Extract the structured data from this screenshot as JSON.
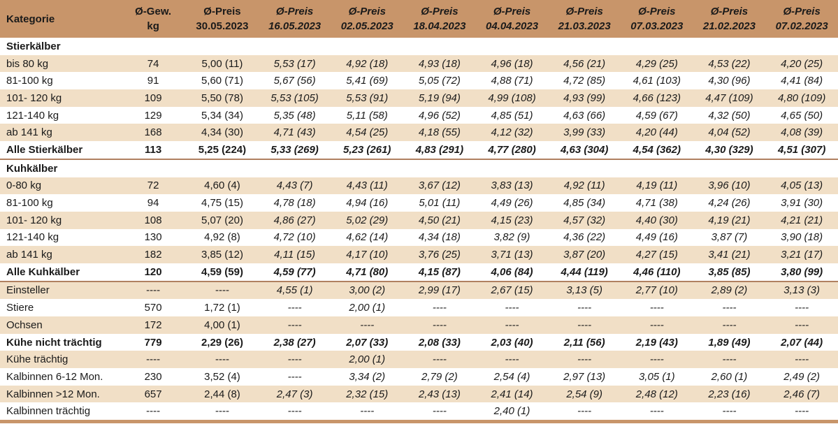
{
  "header": {
    "category": "Kategorie",
    "weight_line1": "Ø-Gew.",
    "weight_line2": "kg",
    "price_label": "Ø-Preis",
    "dates": [
      "30.05.2023",
      "16.05.2023",
      "02.05.2023",
      "18.04.2023",
      "04.04.2023",
      "21.03.2023",
      "07.03.2023",
      "21.02.2023",
      "07.02.2023"
    ]
  },
  "sections": {
    "stierkaelber": "Stierkälber",
    "kuhkaelber": "Kuhkälber"
  },
  "rows": [
    {
      "label": "bis 80 kg",
      "w": "74",
      "p": [
        "5,00 (11)",
        "5,53 (17)",
        "4,92 (18)",
        "4,93 (18)",
        "4,96 (18)",
        "4,56 (21)",
        "4,29 (25)",
        "4,53 (22)",
        "4,20 (25)"
      ]
    },
    {
      "label": "81-100 kg",
      "w": "91",
      "p": [
        "5,60 (71)",
        "5,67 (56)",
        "5,41 (69)",
        "5,05 (72)",
        "4,88 (71)",
        "4,72 (85)",
        "4,61 (103)",
        "4,30 (96)",
        "4,41 (84)"
      ]
    },
    {
      "label": "101- 120 kg",
      "w": "109",
      "p": [
        "5,50 (78)",
        "5,53 (105)",
        "5,53 (91)",
        "5,19 (94)",
        "4,99 (108)",
        "4,93 (99)",
        "4,66 (123)",
        "4,47 (109)",
        "4,80 (109)"
      ]
    },
    {
      "label": "121-140 kg",
      "w": "129",
      "p": [
        "5,34 (34)",
        "5,35 (48)",
        "5,11 (58)",
        "4,96 (52)",
        "4,85 (51)",
        "4,63 (66)",
        "4,59 (67)",
        "4,32 (50)",
        "4,65 (50)"
      ]
    },
    {
      "label": "ab 141 kg",
      "w": "168",
      "p": [
        "4,34 (30)",
        "4,71 (43)",
        "4,54 (25)",
        "4,18 (55)",
        "4,12 (32)",
        "3,99 (33)",
        "4,20 (44)",
        "4,04 (52)",
        "4,08 (39)"
      ]
    },
    {
      "label": "Alle Stierkälber",
      "w": "113",
      "p": [
        "5,25 (224)",
        "5,33 (269)",
        "5,23 (261)",
        "4,83 (291)",
        "4,77 (280)",
        "4,63 (304)",
        "4,54 (362)",
        "4,30 (329)",
        "4,51 (307)"
      ]
    },
    {
      "label": "0-80 kg",
      "w": "72",
      "p": [
        "4,60 (4)",
        "4,43 (7)",
        "4,43 (11)",
        "3,67 (12)",
        "3,83 (13)",
        "4,92 (11)",
        "4,19 (11)",
        "3,96 (10)",
        "4,05 (13)"
      ]
    },
    {
      "label": "81-100 kg",
      "w": "94",
      "p": [
        "4,75 (15)",
        "4,78 (18)",
        "4,94 (16)",
        "5,01 (11)",
        "4,49 (26)",
        "4,85 (34)",
        "4,71 (38)",
        "4,24 (26)",
        "3,91 (30)"
      ]
    },
    {
      "label": "101- 120 kg",
      "w": "108",
      "p": [
        "5,07 (20)",
        "4,86 (27)",
        "5,02 (29)",
        "4,50 (21)",
        "4,15 (23)",
        "4,57 (32)",
        "4,40 (30)",
        "4,19 (21)",
        "4,21 (21)"
      ]
    },
    {
      "label": "121-140 kg",
      "w": "130",
      "p": [
        "4,92 (8)",
        "4,72 (10)",
        "4,62 (14)",
        "4,34 (18)",
        "3,82 (9)",
        "4,36 (22)",
        "4,49 (16)",
        "3,87 (7)",
        "3,90 (18)"
      ]
    },
    {
      "label": "ab 141 kg",
      "w": "182",
      "p": [
        "3,85 (12)",
        "4,11 (15)",
        "4,17 (10)",
        "3,76 (25)",
        "3,71 (13)",
        "3,87 (20)",
        "4,27 (15)",
        "3,41 (21)",
        "3,21 (17)"
      ]
    },
    {
      "label": "Alle Kuhkälber",
      "w": "120",
      "p": [
        "4,59 (59)",
        "4,59 (77)",
        "4,71 (80)",
        "4,15 (87)",
        "4,06 (84)",
        "4,44 (119)",
        "4,46 (110)",
        "3,85 (85)",
        "3,80 (99)"
      ]
    },
    {
      "label": "Einsteller",
      "w": "----",
      "p": [
        "----",
        "4,55 (1)",
        "3,00 (2)",
        "2,99 (17)",
        "2,67 (15)",
        "3,13 (5)",
        "2,77 (10)",
        "2,89 (2)",
        "3,13 (3)"
      ]
    },
    {
      "label": "Stiere",
      "w": "570",
      "p": [
        "1,72 (1)",
        "----",
        "2,00 (1)",
        "----",
        "----",
        "----",
        "----",
        "----",
        "----"
      ]
    },
    {
      "label": "Ochsen",
      "w": "172",
      "p": [
        "4,00 (1)",
        "----",
        "----",
        "----",
        "----",
        "----",
        "----",
        "----",
        "----"
      ]
    },
    {
      "label": "Kühe nicht trächtig",
      "w": "779",
      "p": [
        "2,29 (26)",
        "2,38 (27)",
        "2,07 (33)",
        "2,08 (33)",
        "2,03 (40)",
        "2,11 (56)",
        "2,19 (43)",
        "1,89 (49)",
        "2,07 (44)"
      ]
    },
    {
      "label": "Kühe trächtig",
      "w": "----",
      "p": [
        "----",
        "----",
        "2,00 (1)",
        "----",
        "----",
        "----",
        "----",
        "----",
        "----"
      ]
    },
    {
      "label": "Kalbinnen 6-12 Mon.",
      "w": "230",
      "p": [
        "3,52 (4)",
        "----",
        "3,34 (2)",
        "2,79 (2)",
        "2,54 (4)",
        "2,97 (13)",
        "3,05 (1)",
        "2,60 (1)",
        "2,49 (2)"
      ]
    },
    {
      "label": "Kalbinnen >12 Mon.",
      "w": "657",
      "p": [
        "2,44 (8)",
        "2,47 (3)",
        "2,32 (15)",
        "2,43 (13)",
        "2,41 (14)",
        "2,54 (9)",
        "2,48 (12)",
        "2,23 (16)",
        "2,46 (7)"
      ]
    },
    {
      "label": "Kalbinnen trächtig",
      "w": "----",
      "p": [
        "----",
        "----",
        "----",
        "----",
        "2,40 (1)",
        "----",
        "----",
        "----",
        "----"
      ]
    }
  ]
}
